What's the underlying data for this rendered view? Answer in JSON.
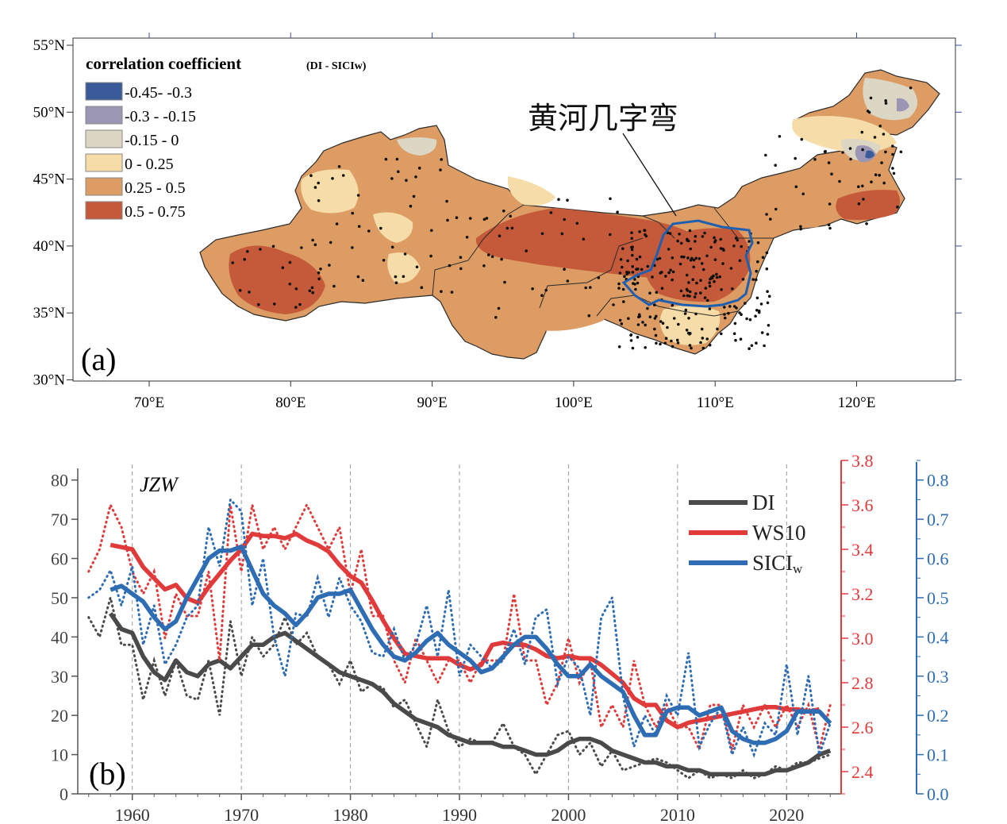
{
  "colors": {
    "di": "#4a4a4a",
    "ws10": "#e03a3a",
    "sici": "#2e6db4",
    "class_colors": [
      "#3a5a9a",
      "#9b96b4",
      "#dcd6c4",
      "#f6dca8",
      "#dc9c64",
      "#c45a3a"
    ],
    "river_outline": "#1f5fb0"
  },
  "panel_a": {
    "panel_label": "(a)",
    "legend_title": "correlation coefficient",
    "legend_title_small": "(DI - SICIw)",
    "legend_items": [
      {
        "label": "-0.45- -0.3",
        "range": [
          -0.45,
          -0.3
        ]
      },
      {
        "label": "-0.3 - -0.15",
        "range": [
          -0.3,
          -0.15
        ]
      },
      {
        "label": "-0.15 - 0",
        "range": [
          -0.15,
          0
        ]
      },
      {
        "label": "0 - 0.25",
        "range": [
          0,
          0.25
        ]
      },
      {
        "label": "0.25 - 0.5",
        "range": [
          0.25,
          0.5
        ]
      },
      {
        "label": "0.5 - 0.75",
        "range": [
          0.5,
          0.75
        ]
      }
    ],
    "region_label": "黄河几字弯",
    "lat_ticks": [
      "55°N",
      "50°N",
      "45°N",
      "40°N",
      "35°N",
      "30°N"
    ],
    "lon_ticks": [
      "70°E",
      "80°E",
      "90°E",
      "100°E",
      "110°E",
      "120°E"
    ]
  },
  "chart_data": {
    "type": "line",
    "panel_label": "(b)",
    "annotation": "JZW",
    "x": [
      1956,
      1957,
      1958,
      1959,
      1960,
      1961,
      1962,
      1963,
      1964,
      1965,
      1966,
      1967,
      1968,
      1969,
      1970,
      1971,
      1972,
      1973,
      1974,
      1975,
      1976,
      1977,
      1978,
      1979,
      1980,
      1981,
      1982,
      1983,
      1984,
      1985,
      1986,
      1987,
      1988,
      1989,
      1990,
      1991,
      1992,
      1993,
      1994,
      1995,
      1996,
      1997,
      1998,
      1999,
      2000,
      2001,
      2002,
      2003,
      2004,
      2005,
      2006,
      2007,
      2008,
      2009,
      2010,
      2011,
      2012,
      2013,
      2014,
      2015,
      2016,
      2017,
      2018,
      2019,
      2020,
      2021,
      2022,
      2023,
      2024
    ],
    "xlim": [
      1955,
      2025
    ],
    "xticks": [
      1960,
      1970,
      1980,
      1990,
      2000,
      2010,
      2020
    ],
    "vgrid": [
      1960,
      1970,
      1980,
      1990,
      2000,
      2010,
      2020
    ],
    "grid": "dashed vertical",
    "left_axis": {
      "ylim": [
        0,
        85
      ],
      "ticks": [
        0,
        10,
        20,
        30,
        40,
        50,
        60,
        70,
        80
      ]
    },
    "right_axis_1": {
      "ylim": [
        2.3,
        3.8
      ],
      "ticks": [
        2.4,
        2.6,
        2.8,
        3.0,
        3.2,
        3.4,
        3.6,
        3.8
      ],
      "labels": [
        "2.4",
        "2.6",
        "2.8",
        "3.0",
        "3.2",
        "3.4",
        "3.6",
        "3.8"
      ]
    },
    "right_axis_2": {
      "ylim": [
        0,
        0.85
      ],
      "ticks": [
        0.0,
        0.1,
        0.2,
        0.3,
        0.4,
        0.5,
        0.6,
        0.7,
        0.8
      ],
      "labels": [
        "0.0",
        "0.1",
        "0.2",
        "0.3",
        "0.4",
        "0.5",
        "0.6",
        "0.7",
        "0.8"
      ]
    },
    "legend": {
      "placement": "top-right"
    },
    "series": [
      {
        "name": "DI",
        "axis": "left",
        "key": "di",
        "annual": [
          45,
          40,
          50,
          38,
          38,
          24,
          34,
          25,
          34,
          25,
          24,
          34,
          20,
          44,
          30,
          40,
          35,
          38,
          45,
          38,
          41,
          35,
          33,
          28,
          34,
          26,
          28,
          27,
          22,
          24,
          18,
          12,
          24,
          16,
          12,
          14,
          13,
          13,
          18,
          12,
          10,
          5,
          10,
          15,
          16,
          10,
          13,
          7,
          11,
          6,
          7,
          8,
          9,
          8,
          6,
          4,
          6,
          4,
          5,
          4,
          6,
          4,
          5,
          7,
          6,
          8,
          8,
          9,
          10
        ],
        "smooth": [
          null,
          null,
          46,
          42,
          41,
          35,
          31,
          29,
          34,
          31,
          30,
          33,
          34,
          32,
          35,
          38,
          38,
          40,
          41,
          39,
          37,
          35,
          33,
          31,
          30,
          29,
          28,
          26,
          23,
          21,
          19,
          18,
          17,
          15,
          14,
          13,
          13,
          13,
          12,
          12,
          11,
          10,
          10,
          11,
          13,
          14,
          14,
          13,
          11,
          10,
          9,
          8,
          8,
          7,
          7,
          6,
          6,
          5,
          5,
          5,
          5,
          5,
          5,
          6,
          6,
          7,
          8,
          10,
          11
        ]
      },
      {
        "name": "WS10",
        "axis": "right1",
        "key": "ws10",
        "annual": [
          3.3,
          3.4,
          3.6,
          3.5,
          3.3,
          3.2,
          3.3,
          3.0,
          3.2,
          3.1,
          3.1,
          3.3,
          2.9,
          3.6,
          3.3,
          3.6,
          3.4,
          3.5,
          3.4,
          3.5,
          3.6,
          3.5,
          3.4,
          3.5,
          3.2,
          3.4,
          3.1,
          3.1,
          2.9,
          2.8,
          3.0,
          2.9,
          2.8,
          2.9,
          2.9,
          2.8,
          2.9,
          2.9,
          2.9,
          3.2,
          2.9,
          2.9,
          2.7,
          2.8,
          3.0,
          2.8,
          2.9,
          2.6,
          2.7,
          2.6,
          2.9,
          2.7,
          2.6,
          2.7,
          2.6,
          2.6,
          2.5,
          2.7,
          2.7,
          2.5,
          2.7,
          2.6,
          2.7,
          2.6,
          2.7,
          2.6,
          2.7,
          2.5,
          2.7
        ],
        "smooth": [
          null,
          null,
          3.42,
          3.41,
          3.4,
          3.32,
          3.27,
          3.22,
          3.24,
          3.18,
          3.16,
          3.23,
          3.29,
          3.35,
          3.4,
          3.47,
          3.46,
          3.46,
          3.45,
          3.47,
          3.44,
          3.42,
          3.39,
          3.33,
          3.28,
          3.25,
          3.17,
          3.08,
          3.0,
          2.93,
          2.92,
          2.91,
          2.91,
          2.91,
          2.88,
          2.86,
          2.88,
          2.97,
          2.98,
          2.97,
          2.97,
          2.95,
          2.92,
          2.91,
          2.92,
          2.91,
          2.91,
          2.88,
          2.84,
          2.8,
          2.73,
          2.7,
          2.7,
          2.63,
          2.6,
          2.62,
          2.63,
          2.64,
          2.65,
          2.66,
          2.67,
          2.68,
          2.69,
          2.69,
          2.68,
          2.68,
          2.67,
          2.68,
          null
        ]
      },
      {
        "name": "SICIw",
        "axis": "right2",
        "key": "sici",
        "annual": [
          0.5,
          0.52,
          0.57,
          0.48,
          0.58,
          0.38,
          0.48,
          0.33,
          0.38,
          0.45,
          0.48,
          0.68,
          0.58,
          0.75,
          0.72,
          0.48,
          0.6,
          0.4,
          0.3,
          0.46,
          0.45,
          0.55,
          0.45,
          0.55,
          0.48,
          0.44,
          0.36,
          0.35,
          0.42,
          0.34,
          0.38,
          0.48,
          0.35,
          0.52,
          0.3,
          0.38,
          0.35,
          0.32,
          0.34,
          0.42,
          0.33,
          0.45,
          0.47,
          0.28,
          0.35,
          0.32,
          0.2,
          0.45,
          0.5,
          0.25,
          0.12,
          0.2,
          0.15,
          0.25,
          0.2,
          0.36,
          0.12,
          0.18,
          0.22,
          0.1,
          0.17,
          0.1,
          0.18,
          0.15,
          0.33,
          0.15,
          0.3,
          0.1,
          0.18
        ],
        "smooth": [
          null,
          null,
          0.52,
          0.53,
          0.51,
          0.49,
          0.45,
          0.42,
          0.44,
          0.5,
          0.55,
          0.6,
          0.62,
          0.62,
          0.63,
          0.57,
          0.51,
          0.48,
          0.46,
          0.43,
          0.46,
          0.5,
          0.51,
          0.51,
          0.52,
          0.47,
          0.42,
          0.38,
          0.35,
          0.34,
          0.36,
          0.39,
          0.41,
          0.38,
          0.36,
          0.34,
          0.31,
          0.32,
          0.35,
          0.38,
          0.4,
          0.4,
          0.37,
          0.33,
          0.3,
          0.3,
          0.33,
          0.3,
          0.28,
          0.26,
          0.2,
          0.15,
          0.15,
          0.21,
          0.22,
          0.22,
          0.2,
          0.21,
          0.22,
          0.16,
          0.14,
          0.13,
          0.13,
          0.14,
          0.16,
          0.21,
          0.21,
          0.21,
          0.18
        ]
      }
    ]
  }
}
